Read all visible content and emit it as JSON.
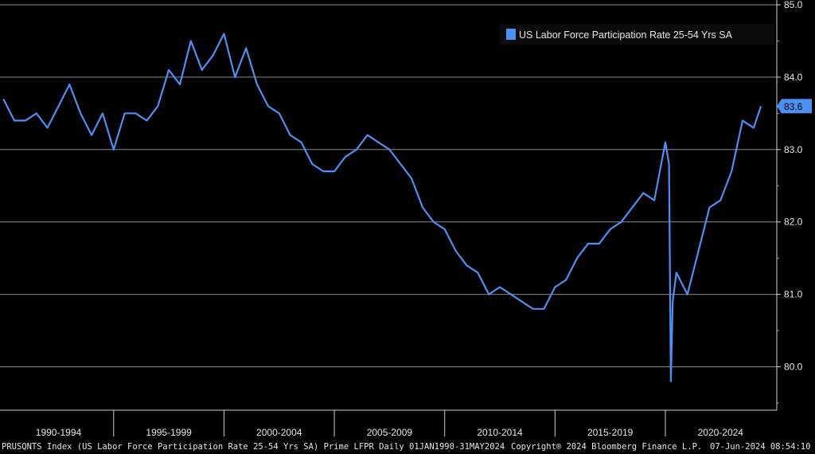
{
  "chart_data": {
    "type": "line",
    "series": [
      {
        "name": "US Labor Force Participation Rate 25-54 Yrs SA",
        "color": "#4c8ff5",
        "x": [
          "1990-01",
          "1990-07",
          "1991-01",
          "1991-07",
          "1992-01",
          "1992-07",
          "1993-01",
          "1993-07",
          "1994-01",
          "1994-07",
          "1995-01",
          "1995-07",
          "1996-01",
          "1996-07",
          "1997-01",
          "1997-07",
          "1998-01",
          "1998-07",
          "1999-01",
          "1999-07",
          "2000-01",
          "2000-07",
          "2001-01",
          "2001-07",
          "2002-01",
          "2002-07",
          "2003-01",
          "2003-07",
          "2004-01",
          "2004-07",
          "2005-01",
          "2005-07",
          "2006-01",
          "2006-07",
          "2007-01",
          "2007-07",
          "2008-01",
          "2008-07",
          "2009-01",
          "2009-07",
          "2010-01",
          "2010-07",
          "2011-01",
          "2011-07",
          "2012-01",
          "2012-07",
          "2013-01",
          "2013-07",
          "2014-01",
          "2014-07",
          "2015-01",
          "2015-07",
          "2016-01",
          "2016-07",
          "2017-01",
          "2017-07",
          "2018-01",
          "2018-07",
          "2019-01",
          "2019-07",
          "2020-01",
          "2020-03",
          "2020-04",
          "2020-05",
          "2020-07",
          "2021-01",
          "2021-07",
          "2022-01",
          "2022-07",
          "2023-01",
          "2023-07",
          "2024-01",
          "2024-05"
        ],
        "values": [
          83.7,
          83.4,
          83.4,
          83.5,
          83.3,
          83.6,
          83.9,
          83.5,
          83.2,
          83.5,
          83.0,
          83.5,
          83.5,
          83.4,
          83.6,
          84.1,
          83.9,
          84.5,
          84.1,
          84.3,
          84.6,
          84.0,
          84.4,
          83.9,
          83.6,
          83.5,
          83.2,
          83.1,
          82.8,
          82.7,
          82.7,
          82.9,
          83.0,
          83.2,
          83.1,
          83.0,
          82.8,
          82.6,
          82.2,
          82.0,
          81.9,
          81.6,
          81.4,
          81.3,
          81.0,
          81.1,
          81.0,
          80.9,
          80.8,
          80.8,
          81.1,
          81.2,
          81.5,
          81.7,
          81.7,
          81.9,
          82.0,
          82.2,
          82.4,
          82.3,
          83.1,
          82.8,
          79.8,
          80.9,
          81.3,
          81.0,
          81.6,
          82.2,
          82.3,
          82.7,
          83.4,
          83.3,
          83.6
        ]
      }
    ],
    "last_value": "83.6",
    "ylim": [
      79.4,
      85.0
    ],
    "y_ticks": [
      "85.0",
      "84.0",
      "83.0",
      "82.0",
      "81.0",
      "80.0"
    ],
    "x_tick_labels": [
      "1990-1994",
      "1995-1999",
      "2000-2004",
      "2005-2009",
      "2010-2014",
      "2015-2019",
      "2020-2024"
    ],
    "grid": true,
    "legend_position": "top-right"
  },
  "footer": {
    "left": "PRUSQNTS Index (US Labor Force Participation Rate 25-54 Yrs SA) Prime LFPR  Daily 01JAN1990-31MAY2024",
    "middle": "Copyright® 2024 Bloomberg Finance L.P.",
    "right": "07-Jun-2024 08:54:10"
  }
}
